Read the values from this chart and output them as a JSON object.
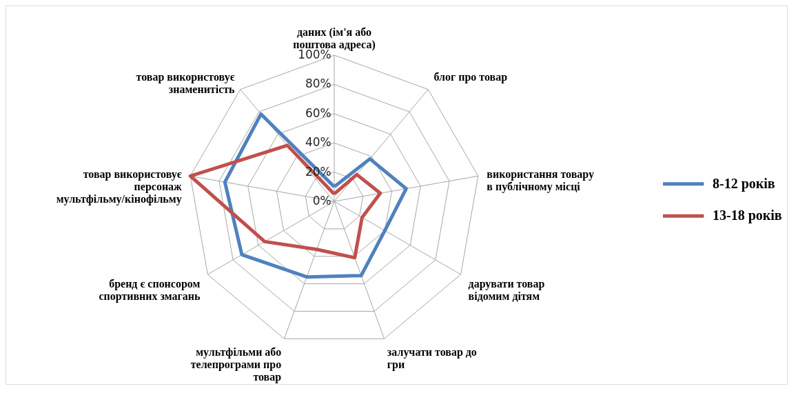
{
  "chart_data": {
    "type": "radar",
    "categories": [
      "даних (ім'я або\nпоштова адреса)",
      "блог про товар",
      "використання товару\nв публічному місці",
      "дарувати товар\nвідомим дітям",
      "залучати товар до\nгри",
      "мультфільми або\nтелепрограми про\nтовар",
      "бренд є спонсором\nспортивних змагань",
      "товар використовує\nперсонаж\nмультфільму/кінофільму",
      "товар використовує\nзнаменитість"
    ],
    "series": [
      {
        "name": "8-12 років",
        "color": "#4f81bd",
        "values": [
          10,
          38,
          50,
          40,
          54,
          55,
          73,
          76,
          78
        ]
      },
      {
        "name": "13-18 років",
        "color": "#c0504d",
        "values": [
          5,
          24,
          32,
          22,
          41,
          35,
          55,
          100,
          50
        ]
      }
    ],
    "ylim": [
      0,
      100
    ],
    "yticks": [
      {
        "value": 0,
        "label": "0%"
      },
      {
        "value": 20,
        "label": "20%"
      },
      {
        "value": 40,
        "label": "40%"
      },
      {
        "value": 60,
        "label": "60%"
      },
      {
        "value": 80,
        "label": "80%"
      },
      {
        "value": 100,
        "label": "100%"
      }
    ],
    "grid": true,
    "legend": "right",
    "line_style": "solid",
    "marker": "none"
  }
}
